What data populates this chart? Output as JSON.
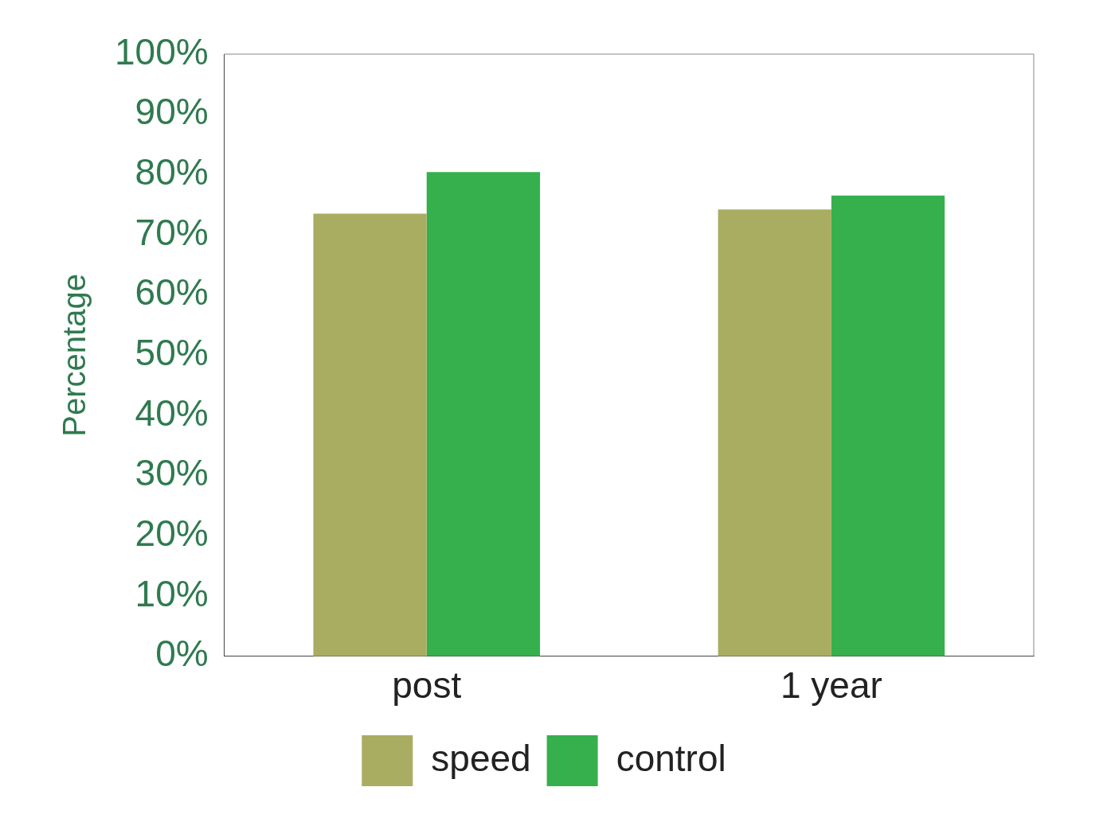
{
  "chart_data": {
    "type": "bar",
    "ylabel": "Percentage",
    "categories": [
      "post",
      "1 year"
    ],
    "series": [
      {
        "name": "speed",
        "color": "#a9ad62",
        "values": [
          73.5,
          74.2
        ]
      },
      {
        "name": "control",
        "color": "#35b04c",
        "values": [
          80.4,
          76.5
        ]
      }
    ],
    "ylim": [
      0,
      100
    ],
    "yticks": [
      {
        "value": 0,
        "label": "0%"
      },
      {
        "value": 10,
        "label": "10%"
      },
      {
        "value": 20,
        "label": "20%"
      },
      {
        "value": 30,
        "label": "30%"
      },
      {
        "value": 40,
        "label": "40%"
      },
      {
        "value": 50,
        "label": "50%"
      },
      {
        "value": 60,
        "label": "60%"
      },
      {
        "value": 70,
        "label": "70%"
      },
      {
        "value": 80,
        "label": "80%"
      },
      {
        "value": 90,
        "label": "90%"
      },
      {
        "value": 100,
        "label": "100%"
      }
    ],
    "grid": false,
    "legend": "bottom"
  }
}
